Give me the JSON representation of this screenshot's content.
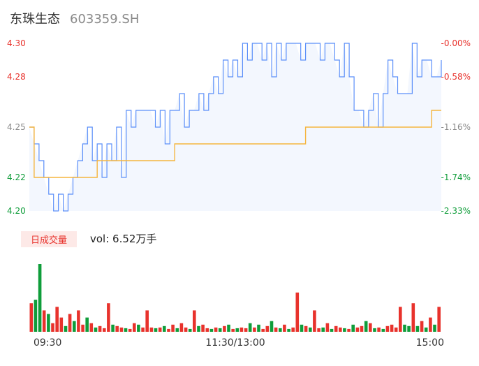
{
  "header": {
    "stock_name": "东珠生态",
    "stock_code": "603359.SH"
  },
  "colors": {
    "up": "#e8322c",
    "down": "#0f9d3a",
    "price_line": "#5b8ff9",
    "avg_line": "#f5b53f",
    "area_fill": "#f3f7fe",
    "text": "#333333",
    "muted": "#8a8a8a"
  },
  "volume_panel": {
    "tag": "日成交量",
    "vol_label": "vol: 6.52万手"
  },
  "chart_data": [
    {
      "type": "line",
      "price_ticks": [
        "4.30",
        "4.28",
        "4.25",
        "4.22",
        "4.20"
      ],
      "price_tick_values": [
        4.3,
        4.28,
        4.25,
        4.22,
        4.2
      ],
      "pct_ticks": [
        "-0.00%",
        "-0.58%",
        "-1.16%",
        "-1.74%",
        "-2.33%"
      ],
      "ylim": [
        4.2,
        4.3
      ],
      "series": [
        {
          "values": [
            4.25,
            4.24,
            4.23,
            4.22,
            4.21,
            4.2,
            4.21,
            4.2,
            4.21,
            4.22,
            4.23,
            4.24,
            4.25,
            4.23,
            4.24,
            4.22,
            4.24,
            4.23,
            4.25,
            4.22,
            4.26,
            4.25,
            4.26,
            4.26,
            4.26,
            4.26,
            4.25,
            4.26,
            4.24,
            4.26,
            4.26,
            4.27,
            4.25,
            4.26,
            4.26,
            4.27,
            4.26,
            4.27,
            4.28,
            4.27,
            4.29,
            4.28,
            4.29,
            4.28,
            4.3,
            4.29,
            4.3,
            4.3,
            4.29,
            4.3,
            4.28,
            4.3,
            4.29,
            4.3,
            4.3,
            4.3,
            4.29,
            4.3,
            4.3,
            4.3,
            4.29,
            4.3,
            4.3,
            4.29,
            4.28,
            4.3,
            4.28,
            4.26,
            4.26,
            4.25,
            4.26,
            4.27,
            4.25,
            4.27,
            4.29,
            4.28,
            4.27,
            4.27,
            4.27,
            4.3,
            4.28,
            4.29,
            4.29,
            4.28,
            4.28,
            4.29
          ]
        },
        {
          "values": [
            4.25,
            4.22,
            4.22,
            4.22,
            4.22,
            4.22,
            4.22,
            4.22,
            4.22,
            4.22,
            4.22,
            4.22,
            4.22,
            4.22,
            4.23,
            4.23,
            4.23,
            4.23,
            4.23,
            4.23,
            4.23,
            4.23,
            4.23,
            4.23,
            4.23,
            4.23,
            4.23,
            4.23,
            4.23,
            4.23,
            4.24,
            4.24,
            4.24,
            4.24,
            4.24,
            4.24,
            4.24,
            4.24,
            4.24,
            4.24,
            4.24,
            4.24,
            4.24,
            4.24,
            4.24,
            4.24,
            4.24,
            4.24,
            4.24,
            4.24,
            4.24,
            4.24,
            4.24,
            4.24,
            4.24,
            4.24,
            4.24,
            4.25,
            4.25,
            4.25,
            4.25,
            4.25,
            4.25,
            4.25,
            4.25,
            4.25,
            4.25,
            4.25,
            4.25,
            4.25,
            4.25,
            4.25,
            4.25,
            4.25,
            4.25,
            4.25,
            4.25,
            4.25,
            4.25,
            4.25,
            4.25,
            4.25,
            4.25,
            4.26,
            4.26,
            4.26
          ]
        }
      ]
    },
    {
      "type": "bar",
      "x_ticks": [
        "09:30",
        "11:30/13:00",
        "15:00"
      ],
      "values": [
        40,
        45,
        95,
        30,
        25,
        12,
        35,
        20,
        8,
        25,
        15,
        30,
        10,
        20,
        12,
        6,
        8,
        5,
        40,
        10,
        8,
        6,
        5,
        4,
        12,
        10,
        6,
        30,
        6,
        5,
        6,
        8,
        4,
        10,
        5,
        12,
        6,
        4,
        30,
        8,
        10,
        5,
        4,
        6,
        5,
        8,
        10,
        4,
        5,
        6,
        5,
        12,
        6,
        10,
        4,
        8,
        15,
        6,
        5,
        10,
        4,
        6,
        55,
        10,
        8,
        6,
        30,
        5,
        6,
        12,
        4,
        8,
        6,
        5,
        4,
        10,
        6,
        8,
        15,
        12,
        5,
        6,
        4,
        8,
        10,
        6,
        35,
        10,
        8,
        40,
        8,
        15,
        6,
        20,
        10,
        35
      ],
      "directions": [
        1,
        0,
        0,
        1,
        0,
        1,
        1,
        1,
        0,
        1,
        0,
        1,
        1,
        0,
        1,
        0,
        1,
        1,
        1,
        0,
        1,
        1,
        0,
        1,
        1,
        0,
        1,
        1,
        1,
        0,
        1,
        0,
        1,
        1,
        0,
        1,
        1,
        0,
        1,
        0,
        1,
        1,
        0,
        1,
        0,
        1,
        0,
        1,
        0,
        1,
        1,
        0,
        1,
        0,
        1,
        1,
        0,
        1,
        0,
        1,
        0,
        1,
        1,
        0,
        1,
        0,
        1,
        1,
        0,
        1,
        0,
        1,
        1,
        0,
        1,
        0,
        1,
        1,
        0,
        1,
        0,
        1,
        0,
        1,
        1,
        1,
        1,
        0,
        0,
        1,
        0,
        1,
        0,
        1,
        0,
        1
      ]
    }
  ]
}
